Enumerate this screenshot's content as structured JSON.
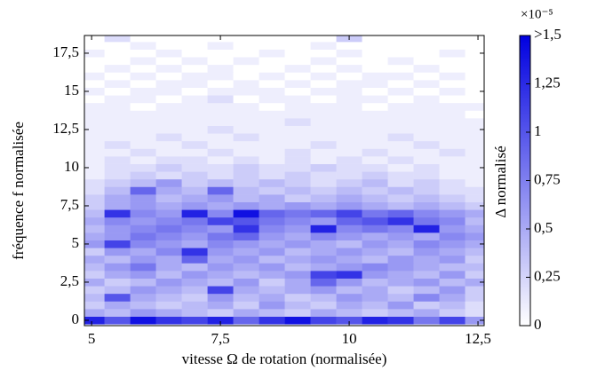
{
  "chart_data": {
    "type": "heatmap",
    "xlabel": "vitesse Ω de rotation (normalisée)",
    "ylabel": "fréquence f normalisée",
    "colorbar_label": "Δ normalisé",
    "colorbar_exponent": "×10⁻⁵",
    "colormap": [
      "#ffffff",
      "#0000e0"
    ],
    "x": [
      5,
      5.5,
      6,
      6.5,
      7,
      7.5,
      8,
      8.5,
      9,
      9.5,
      10,
      10.5,
      11,
      11.5,
      12,
      12.5
    ],
    "y": [
      0,
      0.5,
      1,
      1.5,
      2,
      2.5,
      3,
      3.5,
      4,
      4.5,
      5,
      5.5,
      6,
      6.5,
      7,
      7.5,
      8,
      8.5,
      9,
      9.5,
      10,
      10.5,
      11,
      11.5,
      12,
      12.5,
      13,
      13.5,
      14,
      14.5,
      15,
      15.5,
      16,
      16.5,
      17,
      17.5,
      18,
      18.5
    ],
    "z": [
      [
        1.3,
        1.0,
        1.4,
        1.2,
        1.1,
        1.3,
        0.9,
        1.2,
        1.4,
        1.1,
        1.0,
        1.3,
        1.2,
        0.8,
        1.1,
        0.6
      ],
      [
        0.5,
        0.4,
        0.6,
        0.5,
        0.4,
        0.3,
        0.5,
        0.4,
        0.3,
        0.5,
        0.4,
        0.3,
        0.4,
        0.5,
        0.3,
        0.2
      ],
      [
        0.3,
        0.5,
        0.4,
        0.3,
        0.4,
        0.5,
        0.3,
        0.6,
        0.4,
        0.3,
        0.5,
        0.4,
        0.6,
        0.3,
        0.4,
        0.2
      ],
      [
        0.4,
        1.0,
        0.5,
        0.4,
        0.3,
        0.6,
        0.4,
        0.5,
        0.3,
        0.4,
        0.6,
        0.5,
        0.4,
        0.7,
        0.5,
        0.3
      ],
      [
        0.3,
        0.4,
        0.6,
        0.5,
        0.4,
        1.1,
        0.5,
        0.4,
        0.5,
        0.6,
        0.4,
        0.5,
        0.3,
        0.4,
        0.6,
        0.3
      ],
      [
        0.5,
        0.3,
        0.4,
        0.6,
        0.5,
        0.4,
        0.6,
        0.3,
        0.5,
        0.9,
        0.6,
        0.4,
        0.5,
        0.6,
        0.4,
        0.5
      ],
      [
        0.3,
        0.5,
        0.6,
        0.4,
        0.6,
        0.5,
        0.4,
        0.5,
        0.6,
        1.1,
        1.2,
        0.6,
        0.5,
        0.4,
        0.6,
        0.3
      ],
      [
        0.4,
        0.6,
        0.8,
        0.5,
        0.4,
        0.6,
        0.5,
        0.6,
        0.4,
        0.5,
        0.6,
        0.7,
        0.6,
        0.5,
        0.4,
        0.4
      ],
      [
        0.5,
        0.4,
        0.6,
        0.5,
        0.9,
        0.5,
        0.6,
        0.4,
        0.5,
        0.6,
        0.5,
        0.4,
        0.6,
        0.5,
        0.6,
        0.3
      ],
      [
        0.3,
        0.6,
        0.5,
        0.7,
        1.2,
        0.6,
        0.5,
        0.6,
        0.4,
        0.5,
        0.6,
        0.5,
        0.4,
        0.6,
        0.5,
        0.4
      ],
      [
        0.6,
        1.1,
        0.7,
        0.6,
        0.5,
        0.7,
        0.6,
        0.5,
        0.6,
        0.5,
        0.4,
        0.6,
        0.5,
        0.7,
        0.6,
        0.5
      ],
      [
        0.5,
        0.6,
        0.8,
        0.7,
        0.6,
        0.8,
        0.9,
        0.6,
        0.5,
        0.7,
        0.6,
        0.5,
        0.6,
        0.5,
        0.7,
        0.6
      ],
      [
        0.4,
        0.6,
        0.7,
        0.8,
        0.7,
        0.6,
        1.2,
        0.7,
        0.6,
        1.3,
        0.7,
        0.8,
        0.7,
        1.3,
        0.6,
        0.5
      ],
      [
        0.5,
        0.7,
        0.6,
        0.7,
        0.8,
        1.1,
        1.0,
        0.8,
        0.7,
        0.6,
        0.9,
        1.0,
        1.2,
        0.8,
        0.7,
        0.4
      ],
      [
        0.4,
        1.2,
        0.7,
        0.6,
        1.3,
        0.7,
        1.4,
        0.9,
        0.8,
        0.9,
        1.1,
        0.8,
        0.9,
        0.7,
        0.6,
        0.5
      ],
      [
        0.3,
        0.5,
        0.6,
        0.5,
        0.6,
        0.5,
        0.6,
        0.5,
        0.6,
        0.5,
        0.6,
        0.5,
        0.4,
        0.5,
        0.4,
        0.3
      ],
      [
        0.3,
        0.5,
        0.6,
        0.4,
        0.5,
        0.6,
        0.4,
        0.5,
        0.3,
        0.4,
        0.5,
        0.4,
        0.3,
        0.4,
        0.3,
        0.2
      ],
      [
        0.2,
        0.4,
        0.9,
        0.5,
        0.4,
        0.9,
        0.4,
        0.3,
        0.4,
        0.3,
        0.4,
        0.3,
        0.4,
        0.3,
        0.2,
        0.2
      ],
      [
        0.2,
        0.3,
        0.4,
        0.6,
        0.3,
        0.4,
        0.3,
        0.4,
        0.3,
        0.2,
        0.3,
        0.4,
        0.2,
        0.3,
        0.2,
        0.1
      ],
      [
        0.1,
        0.2,
        0.3,
        0.2,
        0.3,
        0.2,
        0.3,
        0.2,
        0.3,
        0.2,
        0.2,
        0.3,
        0.2,
        0.2,
        0.1,
        0.1
      ],
      [
        0.1,
        0.2,
        0.2,
        0.3,
        0.2,
        0.2,
        0.3,
        0.2,
        0.2,
        0.3,
        0.2,
        0.2,
        0.1,
        0.2,
        0.1,
        0.1
      ],
      [
        0.1,
        0.2,
        0.1,
        0.2,
        0.2,
        0.1,
        0.2,
        0.1,
        0.2,
        0.1,
        0.2,
        0.1,
        0.2,
        0.1,
        0.1,
        0.1
      ],
      [
        0.1,
        0.1,
        0.2,
        0.1,
        0.1,
        0.2,
        0.1,
        0.1,
        0.2,
        0.1,
        0.1,
        0.2,
        0.1,
        0.1,
        0.2,
        0.1
      ],
      [
        0.1,
        0.2,
        0.1,
        0.1,
        0.2,
        0.1,
        0.1,
        0.1,
        0.1,
        0.2,
        0.1,
        0.1,
        0.1,
        0.2,
        0.1,
        0.1
      ],
      [
        0.1,
        0.1,
        0.1,
        0.2,
        0.1,
        0.1,
        0.2,
        0.1,
        0.1,
        0.1,
        0.1,
        0.1,
        0.2,
        0.1,
        0.1,
        0.1
      ],
      [
        0.1,
        0.1,
        0.1,
        0.1,
        0.1,
        0.2,
        0.1,
        0.1,
        0.1,
        0.1,
        0.1,
        0.1,
        0.1,
        0.1,
        0.1,
        0.1
      ],
      [
        0.1,
        0.1,
        0.1,
        0.1,
        0.1,
        0.1,
        0.1,
        0.1,
        0.2,
        0.1,
        0.1,
        0.1,
        0.1,
        0.1,
        0.1,
        0.1
      ],
      [
        0.1,
        0.1,
        0.1,
        0.1,
        0.1,
        0.1,
        0.1,
        0.1,
        0.1,
        0.1,
        0.1,
        0.1,
        0.1,
        0.1,
        0.1,
        0
      ],
      [
        0.1,
        0.1,
        0,
        0.1,
        0.1,
        0.1,
        0.1,
        0,
        0.1,
        0.1,
        0.1,
        0,
        0.1,
        0.1,
        0.1,
        0.1
      ],
      [
        0,
        0.1,
        0.1,
        0,
        0.1,
        0.2,
        0,
        0.1,
        0.1,
        0,
        0.1,
        0.1,
        0,
        0.1,
        0,
        0
      ],
      [
        0.1,
        0,
        0.1,
        0.1,
        0,
        0.1,
        0.1,
        0.1,
        0,
        0.1,
        0.1,
        0,
        0.1,
        0,
        0.1,
        0
      ],
      [
        0,
        0.1,
        0,
        0.1,
        0.1,
        0,
        0.1,
        0,
        0.1,
        0,
        0.1,
        0.1,
        0,
        0.1,
        0,
        0
      ],
      [
        0.1,
        0,
        0.1,
        0,
        0.1,
        0.1,
        0,
        0.1,
        0,
        0.1,
        0,
        0.1,
        0.1,
        0,
        0.1,
        0
      ],
      [
        0,
        0.1,
        0,
        0.1,
        0,
        0.1,
        0,
        0,
        0.1,
        0,
        0.1,
        0,
        0,
        0.1,
        0,
        0
      ],
      [
        0,
        0,
        0.1,
        0,
        0.1,
        0,
        0.1,
        0,
        0,
        0.1,
        0,
        0,
        0.1,
        0,
        0,
        0
      ],
      [
        0.1,
        0,
        0,
        0.1,
        0,
        0,
        0,
        0.1,
        0,
        0,
        0.1,
        0,
        0,
        0,
        0.1,
        0
      ],
      [
        0,
        0,
        0.1,
        0,
        0,
        0.1,
        0,
        0,
        0,
        0.1,
        0,
        0,
        0,
        0,
        0,
        0
      ],
      [
        0,
        0.2,
        0,
        0,
        0,
        0,
        0,
        0,
        0,
        0,
        0.3,
        0,
        0,
        0,
        0,
        0
      ]
    ],
    "xlim": [
      4.86,
      12.62
    ],
    "ylim": [
      -0.35,
      18.66
    ],
    "zlim": [
      0,
      1.5
    ],
    "xticks": [
      5,
      {
        "value": 7.5,
        "label": "7,5"
      },
      10,
      {
        "value": 12.5,
        "label": "12,5"
      }
    ],
    "yticks": [
      0,
      {
        "value": 2.5,
        "label": "2,5"
      },
      5,
      {
        "value": 7.5,
        "label": "7,5"
      },
      10,
      {
        "value": 12.5,
        "label": "12,5"
      },
      15,
      {
        "value": 17.5,
        "label": "17,5"
      }
    ],
    "zticks": [
      0,
      {
        "value": 0.25,
        "label": "0,25"
      },
      {
        "value": 0.5,
        "label": "0,5"
      },
      {
        "value": 0.75,
        "label": "0,75"
      },
      1,
      {
        "value": 1.25,
        "label": "1,25"
      },
      {
        "value": 1.5,
        "label": ">1,5"
      }
    ]
  }
}
